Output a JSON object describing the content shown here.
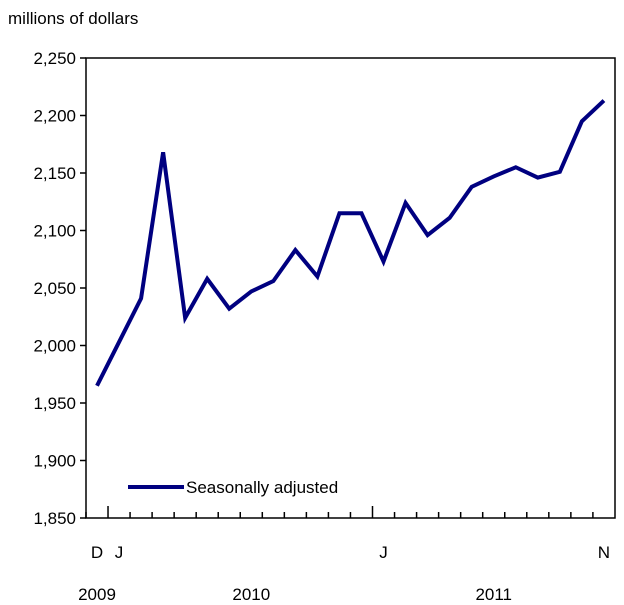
{
  "chart_data": {
    "type": "line",
    "title": "",
    "ylabel": "millions of dollars",
    "xlabel": "",
    "ylim": [
      1850,
      2250
    ],
    "ytick_values": [
      1850,
      1900,
      1950,
      2000,
      2050,
      2100,
      2150,
      2200,
      2250
    ],
    "ytick_labels": [
      "1,850",
      "1,900",
      "1,950",
      "2,000",
      "2,050",
      "2,100",
      "2,150",
      "2,200",
      "2,250"
    ],
    "x": [
      "2009-12",
      "2010-01",
      "2010-02",
      "2010-03",
      "2010-04",
      "2010-05",
      "2010-06",
      "2010-07",
      "2010-08",
      "2010-09",
      "2010-10",
      "2010-11",
      "2010-12",
      "2011-01",
      "2011-02",
      "2011-03",
      "2011-04",
      "2011-05",
      "2011-06",
      "2011-07",
      "2011-08",
      "2011-09",
      "2011-10",
      "2011-11"
    ],
    "series": [
      {
        "name": "Seasonally adjusted",
        "color": "#000080",
        "values": [
          1965,
          2003,
          2041,
          2168,
          2024,
          2058,
          2032,
          2047,
          2056,
          2083,
          2060,
          2115,
          2115,
          2073,
          2124,
          2096,
          2111,
          2138,
          2147,
          2155,
          2146,
          2151,
          2195,
          2213
        ]
      }
    ],
    "month_tick_labels": [
      {
        "x": "2009-12",
        "label": "D"
      },
      {
        "x": "2010-01",
        "label": "J"
      },
      {
        "x": "2011-01",
        "label": "J"
      },
      {
        "x": "2011-11",
        "label": "N"
      }
    ],
    "year_labels": [
      {
        "x": "2009-12",
        "label": "2009"
      },
      {
        "x": "2010-07",
        "label": "2010"
      },
      {
        "x": "2011-06",
        "label": "2011"
      }
    ],
    "grid": false,
    "legend_position": "bottom-left"
  }
}
